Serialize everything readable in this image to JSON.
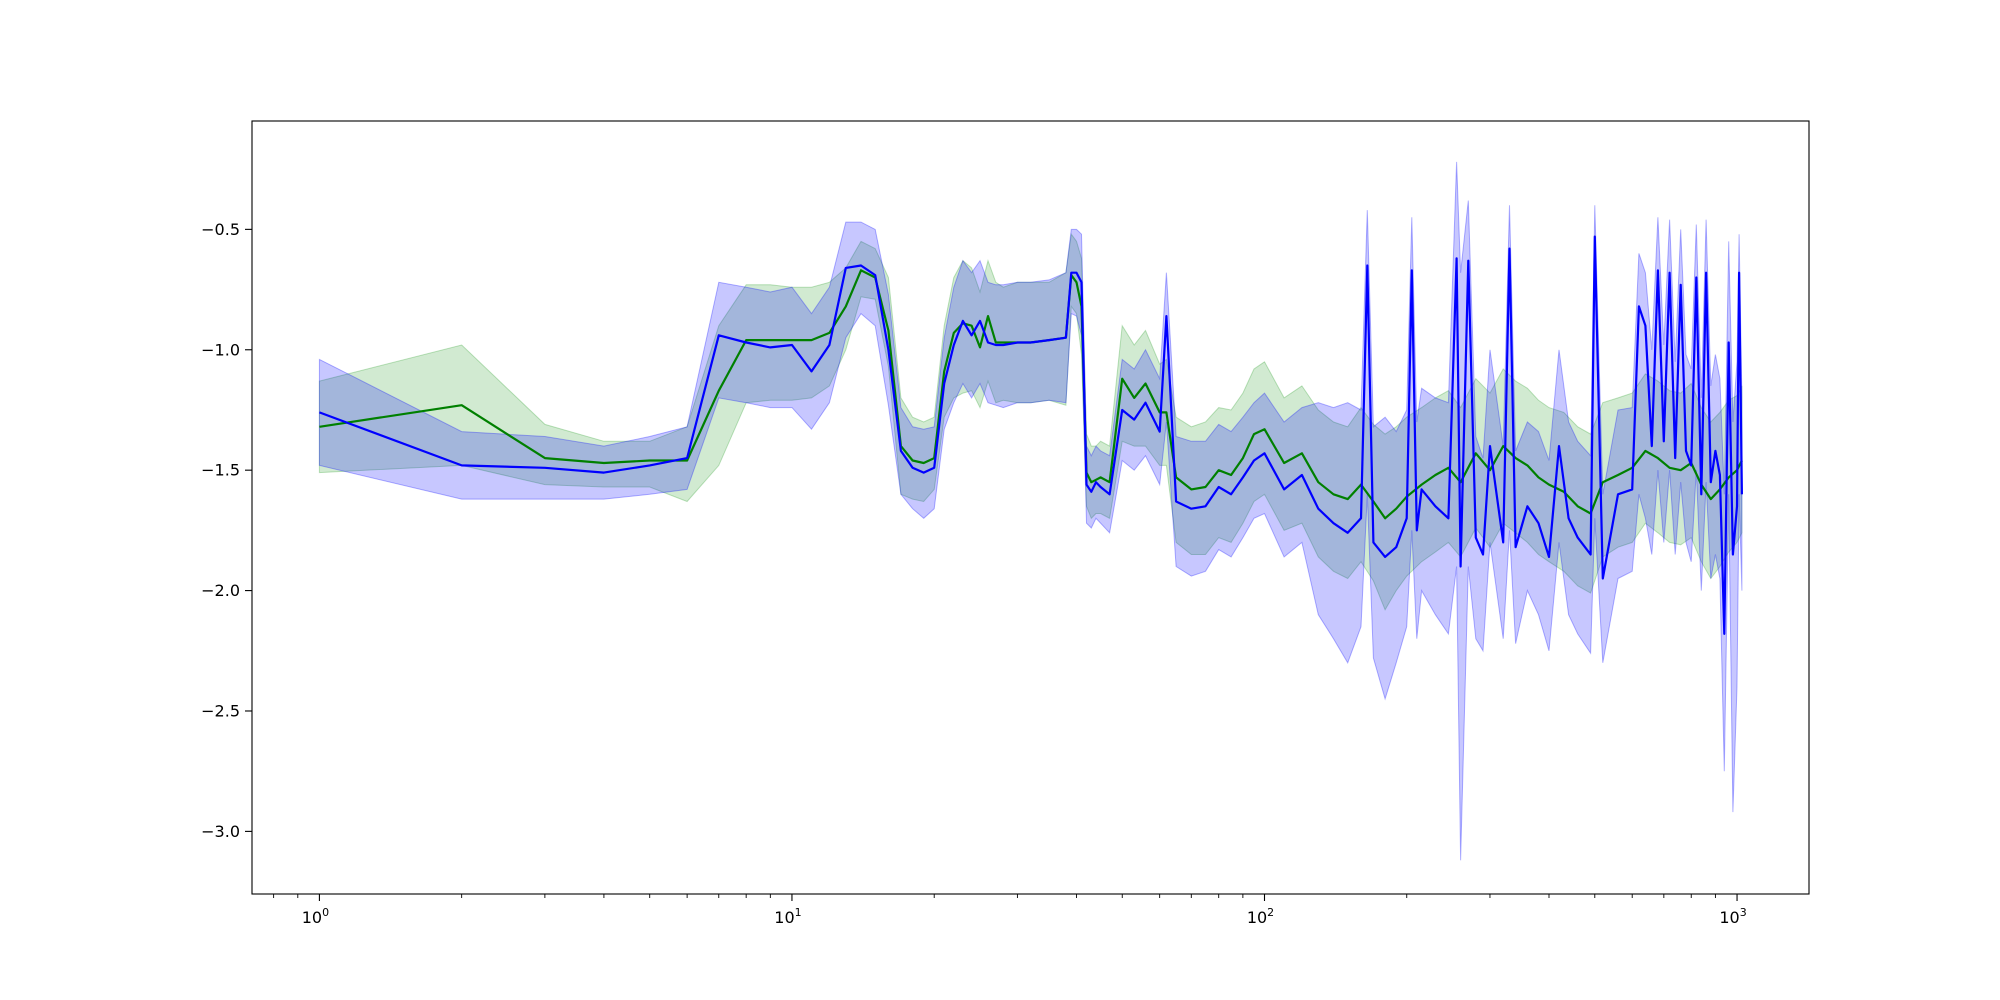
{
  "chart_data": {
    "type": "line",
    "title": "",
    "xlabel": "",
    "ylabel": "",
    "xscale": "log",
    "xlim": [
      0.72,
      1420
    ],
    "ylim": [
      -3.26,
      -0.05
    ],
    "grid": false,
    "legend": "none",
    "x_ticks": [
      {
        "value": 1,
        "base": "10",
        "exp": "0"
      },
      {
        "value": 10,
        "base": "10",
        "exp": "1"
      },
      {
        "value": 100,
        "base": "10",
        "exp": "2"
      },
      {
        "value": 1000,
        "base": "10",
        "exp": "3"
      }
    ],
    "y_ticks": [
      {
        "value": -0.5,
        "label": "−0.5"
      },
      {
        "value": -1.0,
        "label": "−1.0"
      },
      {
        "value": -1.5,
        "label": "−1.5"
      },
      {
        "value": -2.0,
        "label": "−2.0"
      },
      {
        "value": -2.5,
        "label": "−2.5"
      },
      {
        "value": -3.0,
        "label": "−3.0"
      }
    ],
    "series": [
      {
        "color": "#008000",
        "band_color": "#2ca02c",
        "x": [
          1,
          2,
          3,
          4,
          5,
          6,
          7,
          8,
          9,
          10,
          11,
          12,
          13,
          14,
          15,
          16,
          17,
          18,
          19,
          20,
          21,
          22,
          23,
          24,
          25,
          26,
          27,
          28,
          30,
          32,
          35,
          38,
          39,
          40,
          41,
          42,
          43,
          44,
          45,
          47,
          50,
          53,
          56,
          60,
          62,
          65,
          70,
          75,
          80,
          85,
          90,
          95,
          100,
          110,
          120,
          130,
          140,
          150,
          160,
          170,
          180,
          190,
          200,
          215,
          230,
          245,
          260,
          280,
          300,
          320,
          340,
          360,
          380,
          400,
          430,
          460,
          490,
          520,
          560,
          600,
          640,
          680,
          720,
          760,
          800,
          840,
          880,
          920,
          960,
          1000,
          1024
        ],
        "y": [
          -1.32,
          -1.23,
          -1.45,
          -1.47,
          -1.46,
          -1.46,
          -1.17,
          -0.96,
          -0.96,
          -0.96,
          -0.96,
          -0.93,
          -0.82,
          -0.67,
          -0.7,
          -0.92,
          -1.4,
          -1.46,
          -1.47,
          -1.45,
          -1.09,
          -0.93,
          -0.89,
          -0.9,
          -0.99,
          -0.86,
          -0.97,
          -0.97,
          -0.97,
          -0.97,
          -0.96,
          -0.95,
          -0.69,
          -0.72,
          -0.82,
          -1.51,
          -1.55,
          -1.54,
          -1.53,
          -1.55,
          -1.12,
          -1.2,
          -1.14,
          -1.26,
          -1.26,
          -1.53,
          -1.58,
          -1.57,
          -1.5,
          -1.52,
          -1.45,
          -1.35,
          -1.33,
          -1.47,
          -1.43,
          -1.55,
          -1.6,
          -1.62,
          -1.56,
          -1.63,
          -1.7,
          -1.66,
          -1.61,
          -1.56,
          -1.52,
          -1.49,
          -1.55,
          -1.43,
          -1.5,
          -1.4,
          -1.45,
          -1.48,
          -1.53,
          -1.56,
          -1.59,
          -1.65,
          -1.68,
          -1.55,
          -1.52,
          -1.49,
          -1.42,
          -1.45,
          -1.49,
          -1.5,
          -1.47,
          -1.56,
          -1.62,
          -1.58,
          -1.53,
          -1.5,
          -1.46
        ],
        "lower": [
          -1.51,
          -1.48,
          -1.56,
          -1.57,
          -1.57,
          -1.63,
          -1.48,
          -1.22,
          -1.21,
          -1.21,
          -1.2,
          -1.15,
          -1.0,
          -0.78,
          -0.79,
          -1.07,
          -1.6,
          -1.62,
          -1.63,
          -1.58,
          -1.28,
          -1.2,
          -1.18,
          -1.17,
          -1.24,
          -1.13,
          -1.22,
          -1.21,
          -1.22,
          -1.22,
          -1.21,
          -1.23,
          -0.82,
          -0.85,
          -1.02,
          -1.65,
          -1.7,
          -1.68,
          -1.68,
          -1.7,
          -1.38,
          -1.4,
          -1.4,
          -1.48,
          -1.48,
          -1.8,
          -1.85,
          -1.85,
          -1.78,
          -1.8,
          -1.72,
          -1.63,
          -1.6,
          -1.75,
          -1.72,
          -1.86,
          -1.92,
          -1.95,
          -1.88,
          -1.96,
          -2.08,
          -2.0,
          -1.94,
          -1.88,
          -1.84,
          -1.8,
          -1.86,
          -1.74,
          -1.82,
          -1.72,
          -1.76,
          -1.8,
          -1.85,
          -1.88,
          -1.92,
          -1.98,
          -2.01,
          -1.86,
          -1.82,
          -1.8,
          -1.72,
          -1.76,
          -1.8,
          -1.81,
          -1.78,
          -1.88,
          -1.95,
          -1.9,
          -1.84,
          -1.8,
          -1.76
        ],
        "upper": [
          -1.13,
          -0.98,
          -1.31,
          -1.38,
          -1.38,
          -1.32,
          -0.9,
          -0.73,
          -0.73,
          -0.74,
          -0.74,
          -0.72,
          -0.66,
          -0.55,
          -0.58,
          -0.7,
          -1.2,
          -1.28,
          -1.3,
          -1.28,
          -0.9,
          -0.7,
          -0.63,
          -0.66,
          -0.76,
          -0.63,
          -0.72,
          -0.74,
          -0.72,
          -0.72,
          -0.72,
          -0.68,
          -0.52,
          -0.55,
          -0.62,
          -1.35,
          -1.4,
          -1.4,
          -1.38,
          -1.4,
          -0.9,
          -0.98,
          -0.92,
          -1.06,
          -1.04,
          -1.28,
          -1.32,
          -1.3,
          -1.24,
          -1.25,
          -1.18,
          -1.08,
          -1.05,
          -1.2,
          -1.15,
          -1.25,
          -1.3,
          -1.32,
          -1.24,
          -1.31,
          -1.35,
          -1.32,
          -1.28,
          -1.24,
          -1.2,
          -1.17,
          -1.24,
          -1.12,
          -1.18,
          -1.08,
          -1.13,
          -1.16,
          -1.21,
          -1.24,
          -1.26,
          -1.32,
          -1.35,
          -1.22,
          -1.2,
          -1.18,
          -1.1,
          -1.13,
          -1.17,
          -1.18,
          -1.14,
          -1.24,
          -1.3,
          -1.26,
          -1.21,
          -1.19,
          -1.15
        ]
      },
      {
        "color": "#0000ff",
        "band_color": "#0000ff",
        "x": [
          1,
          2,
          3,
          4,
          5,
          6,
          7,
          8,
          9,
          10,
          11,
          12,
          13,
          14,
          15,
          16,
          17,
          18,
          19,
          20,
          21,
          22,
          23,
          24,
          25,
          26,
          27,
          28,
          30,
          32,
          35,
          38,
          39,
          40,
          41,
          42,
          43,
          44,
          45,
          47,
          50,
          53,
          56,
          60,
          62,
          65,
          70,
          75,
          80,
          85,
          90,
          95,
          100,
          110,
          120,
          130,
          140,
          150,
          160,
          165,
          170,
          180,
          190,
          200,
          205,
          210,
          215,
          230,
          245,
          255,
          260,
          270,
          280,
          290,
          300,
          320,
          330,
          340,
          360,
          380,
          400,
          420,
          440,
          460,
          490,
          500,
          520,
          560,
          600,
          620,
          640,
          660,
          680,
          700,
          720,
          740,
          760,
          780,
          800,
          820,
          840,
          860,
          880,
          900,
          920,
          940,
          960,
          980,
          1000,
          1010,
          1024
        ],
        "y": [
          -1.26,
          -1.48,
          -1.49,
          -1.51,
          -1.48,
          -1.45,
          -0.94,
          -0.97,
          -0.99,
          -0.98,
          -1.09,
          -0.98,
          -0.66,
          -0.65,
          -0.69,
          -1.0,
          -1.42,
          -1.49,
          -1.51,
          -1.49,
          -1.14,
          -0.98,
          -0.88,
          -0.94,
          -0.88,
          -0.97,
          -0.98,
          -0.98,
          -0.97,
          -0.97,
          -0.96,
          -0.95,
          -0.68,
          -0.68,
          -0.72,
          -1.56,
          -1.59,
          -1.55,
          -1.57,
          -1.6,
          -1.25,
          -1.29,
          -1.22,
          -1.34,
          -0.86,
          -1.63,
          -1.66,
          -1.65,
          -1.57,
          -1.6,
          -1.53,
          -1.46,
          -1.43,
          -1.58,
          -1.52,
          -1.66,
          -1.72,
          -1.76,
          -1.7,
          -0.65,
          -1.8,
          -1.86,
          -1.82,
          -1.7,
          -0.67,
          -1.75,
          -1.58,
          -1.65,
          -1.7,
          -0.62,
          -1.9,
          -0.63,
          -1.78,
          -1.85,
          -1.4,
          -1.8,
          -0.58,
          -1.82,
          -1.65,
          -1.72,
          -1.86,
          -1.4,
          -1.7,
          -1.78,
          -1.85,
          -0.53,
          -1.95,
          -1.6,
          -1.58,
          -0.82,
          -0.9,
          -1.4,
          -0.67,
          -1.38,
          -0.68,
          -1.45,
          -0.73,
          -1.42,
          -1.48,
          -0.7,
          -1.6,
          -0.68,
          -1.55,
          -1.42,
          -1.52,
          -2.18,
          -0.97,
          -1.85,
          -1.65,
          -0.68,
          -1.6
        ],
        "lower": [
          -1.48,
          -1.62,
          -1.62,
          -1.62,
          -1.6,
          -1.58,
          -1.2,
          -1.22,
          -1.24,
          -1.24,
          -1.33,
          -1.22,
          -0.95,
          -0.85,
          -0.9,
          -1.23,
          -1.6,
          -1.66,
          -1.7,
          -1.66,
          -1.33,
          -1.22,
          -1.14,
          -1.2,
          -1.14,
          -1.22,
          -1.23,
          -1.24,
          -1.22,
          -1.22,
          -1.21,
          -1.22,
          -0.85,
          -0.86,
          -0.94,
          -1.72,
          -1.74,
          -1.7,
          -1.72,
          -1.76,
          -1.46,
          -1.5,
          -1.44,
          -1.56,
          -1.3,
          -1.9,
          -1.94,
          -1.92,
          -1.83,
          -1.86,
          -1.78,
          -1.7,
          -1.68,
          -1.86,
          -1.8,
          -2.1,
          -2.2,
          -2.3,
          -2.15,
          -1.6,
          -2.28,
          -2.45,
          -2.3,
          -2.15,
          -1.75,
          -2.2,
          -2.0,
          -2.1,
          -2.18,
          -1.9,
          -3.12,
          -1.9,
          -2.2,
          -2.25,
          -1.8,
          -2.2,
          -1.75,
          -2.22,
          -2.0,
          -2.1,
          -2.25,
          -1.8,
          -2.1,
          -2.18,
          -2.26,
          -1.7,
          -2.3,
          -1.95,
          -1.92,
          -1.6,
          -1.7,
          -1.85,
          -1.5,
          -1.8,
          -1.5,
          -1.85,
          -1.55,
          -1.8,
          -1.88,
          -1.5,
          -2.0,
          -1.55,
          -1.95,
          -1.85,
          -1.95,
          -2.75,
          -1.6,
          -2.92,
          -2.4,
          -1.6,
          -2.0
        ],
        "upper": [
          -1.04,
          -1.34,
          -1.36,
          -1.4,
          -1.36,
          -1.32,
          -0.72,
          -0.74,
          -0.76,
          -0.74,
          -0.85,
          -0.74,
          -0.47,
          -0.47,
          -0.5,
          -0.77,
          -1.24,
          -1.32,
          -1.33,
          -1.32,
          -0.95,
          -0.74,
          -0.63,
          -0.68,
          -0.63,
          -0.72,
          -0.73,
          -0.73,
          -0.72,
          -0.72,
          -0.71,
          -0.68,
          -0.5,
          -0.5,
          -0.52,
          -1.4,
          -1.44,
          -1.4,
          -1.42,
          -1.44,
          -1.04,
          -1.08,
          -1.0,
          -1.12,
          -0.68,
          -1.36,
          -1.38,
          -1.38,
          -1.31,
          -1.34,
          -1.28,
          -1.22,
          -1.18,
          -1.3,
          -1.24,
          -1.22,
          -1.24,
          -1.22,
          -1.25,
          -0.42,
          -1.32,
          -1.28,
          -1.34,
          -1.25,
          -0.45,
          -1.3,
          -1.16,
          -1.2,
          -1.22,
          -0.22,
          -0.68,
          -0.38,
          -1.36,
          -1.45,
          -1.0,
          -1.4,
          -0.4,
          -1.42,
          -1.3,
          -1.34,
          -1.46,
          -1.0,
          -1.3,
          -1.38,
          -1.44,
          -0.4,
          -1.6,
          -1.25,
          -1.24,
          -0.6,
          -0.68,
          -1.0,
          -0.45,
          -0.98,
          -0.46,
          -1.05,
          -0.5,
          -1.02,
          -1.08,
          -0.48,
          -1.2,
          -0.46,
          -1.15,
          -1.02,
          -1.12,
          -1.6,
          -0.55,
          -1.3,
          -1.05,
          -0.52,
          -1.2
        ]
      }
    ]
  }
}
